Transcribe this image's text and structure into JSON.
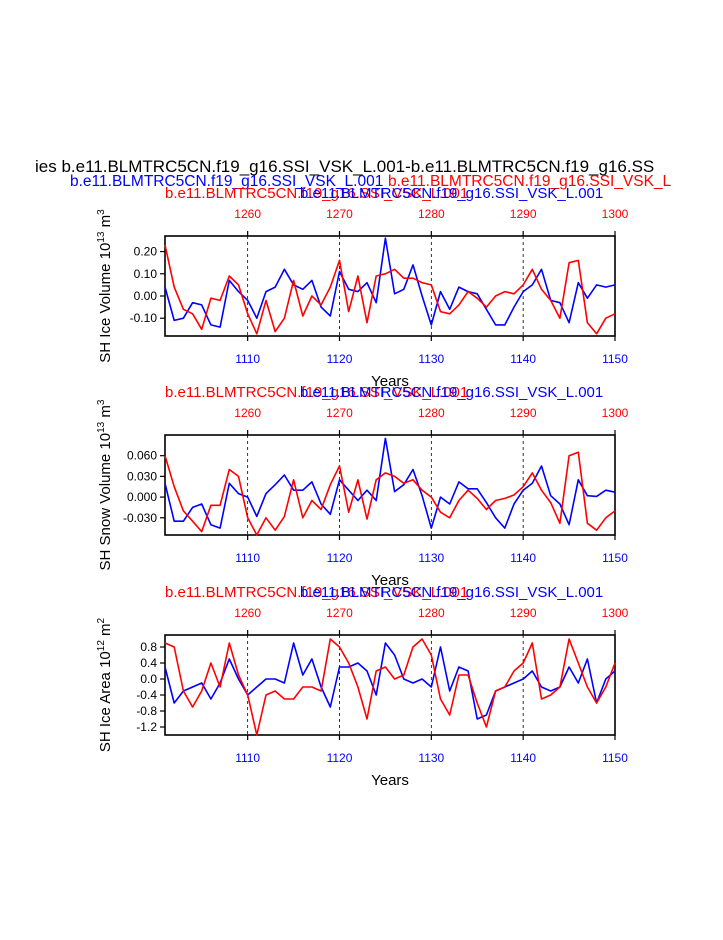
{
  "header": {
    "main_title": "ies b.e11.BLMTRC5CN.f19_g16.SSI_VSK_L.001-b.e11.BLMTRC5CN.f19_g16.SS",
    "run_blue": "b.e11.BLMTRC5CN.f19_g16.SSI_VSK_L.001",
    "run_red": "b.e11.BLMTRC5CN.f19_g16.SSI_VSK_L",
    "colors": {
      "blue": "#0000ff",
      "red": "#ff0000",
      "black": "#000000"
    }
  },
  "chart_data": [
    {
      "type": "line",
      "panel": "ice-volume",
      "ylabel_base": "SH Ice Volume 10",
      "ylabel_exp": "13",
      "ylabel_unit": " m",
      "ylabel_unit_exp": "3",
      "xlabel": "Years",
      "top_left_label": "b.e11.BLMTRC5CN.f19_g16.SSI_VSK_L.001",
      "top_right_label": "b.e11.BLMTRC5CN.f19_g16.SSI_VSK_L.001",
      "ylim": [
        -0.18,
        0.27
      ],
      "yticks": [
        -0.1,
        0.0,
        0.1,
        0.2
      ],
      "ytick_labels": [
        "-0.10",
        "0.00",
        "0.10",
        "0.20"
      ],
      "xlim_bottom": [
        1101,
        1150
      ],
      "xticks_bottom": [
        1110,
        1120,
        1130,
        1140,
        1150
      ],
      "xlim_top": [
        1251,
        1300
      ],
      "xticks_top": [
        1260,
        1270,
        1280,
        1290,
        1300
      ],
      "grid_x": [
        1110,
        1120,
        1130,
        1140
      ],
      "series": [
        {
          "name": "b.e11.BLMTRC5CN.f19_g16.SSI_VSK_L.001",
          "color": "#0000ff",
          "axis": "bottom",
          "x": [
            1101,
            1102,
            1103,
            1104,
            1105,
            1106,
            1107,
            1108,
            1109,
            1110,
            1111,
            1112,
            1113,
            1114,
            1115,
            1116,
            1117,
            1118,
            1119,
            1120,
            1121,
            1122,
            1123,
            1124,
            1125,
            1126,
            1127,
            1128,
            1129,
            1130,
            1131,
            1132,
            1133,
            1134,
            1135,
            1136,
            1137,
            1138,
            1139,
            1140,
            1141,
            1142,
            1143,
            1144,
            1145,
            1146,
            1147,
            1148,
            1149,
            1150
          ],
          "values": [
            0.04,
            -0.11,
            -0.1,
            -0.03,
            -0.04,
            -0.13,
            -0.14,
            0.07,
            0.02,
            -0.02,
            -0.1,
            0.02,
            0.04,
            0.12,
            0.05,
            0.03,
            0.07,
            -0.05,
            -0.09,
            0.11,
            0.03,
            0.02,
            0.06,
            -0.03,
            0.26,
            0.01,
            0.03,
            0.14,
            0.0,
            -0.13,
            0.02,
            -0.06,
            0.04,
            0.02,
            0.01,
            -0.06,
            -0.13,
            -0.13,
            -0.05,
            0.02,
            0.05,
            0.12,
            -0.02,
            -0.03,
            -0.12,
            0.06,
            -0.01,
            0.05,
            0.04,
            0.05
          ]
        },
        {
          "name": "b.e11.BLMTRC5CN.f19_g16.SSI_VSK_L.001",
          "color": "#ff0000",
          "axis": "top",
          "x": [
            1251,
            1252,
            1253,
            1254,
            1255,
            1256,
            1257,
            1258,
            1259,
            1260,
            1261,
            1262,
            1263,
            1264,
            1265,
            1266,
            1267,
            1268,
            1269,
            1270,
            1271,
            1272,
            1273,
            1274,
            1275,
            1276,
            1277,
            1278,
            1279,
            1280,
            1281,
            1282,
            1283,
            1284,
            1285,
            1286,
            1287,
            1288,
            1289,
            1290,
            1291,
            1292,
            1293,
            1294,
            1295,
            1296,
            1297,
            1298,
            1299,
            1300
          ],
          "values": [
            0.23,
            0.04,
            -0.06,
            -0.08,
            -0.15,
            -0.01,
            -0.02,
            0.09,
            0.05,
            -0.08,
            -0.17,
            -0.02,
            -0.16,
            -0.1,
            0.07,
            -0.09,
            0.0,
            -0.04,
            0.04,
            0.16,
            -0.07,
            0.09,
            -0.12,
            0.09,
            0.1,
            0.12,
            0.08,
            0.08,
            0.06,
            0.05,
            -0.07,
            -0.08,
            -0.04,
            0.02,
            -0.01,
            -0.05,
            0.0,
            0.02,
            0.01,
            0.05,
            0.12,
            0.03,
            -0.02,
            -0.1,
            0.15,
            0.16,
            -0.12,
            -0.17,
            -0.1,
            -0.08
          ]
        }
      ]
    },
    {
      "type": "line",
      "panel": "snow-volume",
      "ylabel_base": "SH Snow Volume 10",
      "ylabel_exp": "13",
      "ylabel_unit": " m",
      "ylabel_unit_exp": "3",
      "xlabel": "Years",
      "top_left_label": "b.e11.BLMTRC5CN.f19_g16.SSI_VSK_L.001",
      "top_right_label": "b.e11.BLMTRC5CN.f19_g16.SSI_VSK_L.001",
      "ylim": [
        -0.055,
        0.09
      ],
      "yticks": [
        -0.03,
        0.0,
        0.03,
        0.06
      ],
      "ytick_labels": [
        "-0.030",
        "0.000",
        "0.030",
        "0.060"
      ],
      "xlim_bottom": [
        1101,
        1150
      ],
      "xticks_bottom": [
        1110,
        1120,
        1130,
        1140,
        1150
      ],
      "xlim_top": [
        1251,
        1300
      ],
      "xticks_top": [
        1260,
        1270,
        1280,
        1290,
        1300
      ],
      "grid_x": [
        1110,
        1120,
        1130,
        1140
      ],
      "series": [
        {
          "name": "b.e11.BLMTRC5CN.f19_g16.SSI_VSK_L.001",
          "color": "#0000ff",
          "axis": "bottom",
          "x": [
            1101,
            1102,
            1103,
            1104,
            1105,
            1106,
            1107,
            1108,
            1109,
            1110,
            1111,
            1112,
            1113,
            1114,
            1115,
            1116,
            1117,
            1118,
            1119,
            1120,
            1121,
            1122,
            1123,
            1124,
            1125,
            1126,
            1127,
            1128,
            1129,
            1130,
            1131,
            1132,
            1133,
            1134,
            1135,
            1136,
            1137,
            1138,
            1139,
            1140,
            1141,
            1142,
            1143,
            1144,
            1145,
            1146,
            1147,
            1148,
            1149,
            1150
          ],
          "values": [
            0.02,
            -0.035,
            -0.035,
            -0.015,
            -0.01,
            -0.04,
            -0.045,
            0.02,
            0.005,
            0.0,
            -0.028,
            0.005,
            0.018,
            0.032,
            0.01,
            0.01,
            0.022,
            -0.01,
            -0.025,
            0.025,
            0.01,
            -0.005,
            0.01,
            -0.005,
            0.085,
            0.008,
            0.018,
            0.04,
            0.002,
            -0.045,
            0.0,
            -0.01,
            0.022,
            0.012,
            0.012,
            -0.008,
            -0.03,
            -0.045,
            -0.01,
            0.01,
            0.02,
            0.045,
            0.002,
            -0.01,
            -0.04,
            0.025,
            0.002,
            0.001,
            0.01,
            0.007
          ]
        },
        {
          "name": "b.e11.BLMTRC5CN.f19_g16.SSI_VSK_L.001",
          "color": "#ff0000",
          "axis": "top",
          "x": [
            1251,
            1252,
            1253,
            1254,
            1255,
            1256,
            1257,
            1258,
            1259,
            1260,
            1261,
            1262,
            1263,
            1264,
            1265,
            1266,
            1267,
            1268,
            1269,
            1270,
            1271,
            1272,
            1273,
            1274,
            1275,
            1276,
            1277,
            1278,
            1279,
            1280,
            1281,
            1282,
            1283,
            1284,
            1285,
            1286,
            1287,
            1288,
            1289,
            1290,
            1291,
            1292,
            1293,
            1294,
            1295,
            1296,
            1297,
            1298,
            1299,
            1300
          ],
          "values": [
            0.06,
            0.015,
            -0.02,
            -0.035,
            -0.05,
            -0.012,
            -0.012,
            0.04,
            0.03,
            -0.03,
            -0.055,
            -0.03,
            -0.048,
            -0.028,
            0.025,
            -0.03,
            -0.005,
            -0.018,
            0.018,
            0.045,
            -0.022,
            0.025,
            -0.032,
            0.025,
            0.035,
            0.03,
            0.02,
            0.025,
            0.01,
            0.0,
            -0.022,
            -0.03,
            -0.005,
            0.01,
            -0.002,
            -0.018,
            -0.005,
            -0.002,
            0.003,
            0.015,
            0.035,
            0.01,
            -0.008,
            -0.038,
            0.06,
            0.065,
            -0.038,
            -0.048,
            -0.03,
            -0.02
          ]
        }
      ]
    },
    {
      "type": "line",
      "panel": "ice-area",
      "ylabel_base": "SH Ice Area 10",
      "ylabel_exp": "12",
      "ylabel_unit": " m",
      "ylabel_unit_exp": "2",
      "xlabel": "Years",
      "top_left_label": "b.e11.BLMTRC5CN.f19_g16.SSI_VSK_L.001",
      "top_right_label": "b.e11.BLMTRC5CN.f19_g16.SSI_VSK_L.001",
      "ylim": [
        -1.4,
        1.1
      ],
      "yticks": [
        -1.2,
        -0.8,
        -0.4,
        0.0,
        0.4,
        0.8
      ],
      "ytick_labels": [
        "-1.2",
        "-0.8",
        "-0.4",
        "0.0",
        "0.4",
        "0.8"
      ],
      "xlim_bottom": [
        1101,
        1150
      ],
      "xticks_bottom": [
        1110,
        1120,
        1130,
        1140,
        1150
      ],
      "xlim_top": [
        1251,
        1300
      ],
      "xticks_top": [
        1260,
        1270,
        1280,
        1290,
        1300
      ],
      "grid_x": [
        1110,
        1120,
        1130,
        1140
      ],
      "series": [
        {
          "name": "b.e11.BLMTRC5CN.f19_g16.SSI_VSK_L.001",
          "color": "#0000ff",
          "axis": "bottom",
          "x": [
            1101,
            1102,
            1103,
            1104,
            1105,
            1106,
            1107,
            1108,
            1109,
            1110,
            1111,
            1112,
            1113,
            1114,
            1115,
            1116,
            1117,
            1118,
            1119,
            1120,
            1121,
            1122,
            1123,
            1124,
            1125,
            1126,
            1127,
            1128,
            1129,
            1130,
            1131,
            1132,
            1133,
            1134,
            1135,
            1136,
            1137,
            1138,
            1139,
            1140,
            1141,
            1142,
            1143,
            1144,
            1145,
            1146,
            1147,
            1148,
            1149,
            1150
          ],
          "values": [
            0.3,
            -0.6,
            -0.3,
            -0.2,
            -0.1,
            -0.5,
            -0.1,
            0.5,
            0.0,
            -0.4,
            -0.2,
            0.0,
            0.0,
            -0.1,
            0.9,
            0.1,
            0.5,
            -0.2,
            -0.7,
            0.3,
            0.3,
            0.4,
            0.2,
            -0.4,
            0.9,
            0.6,
            0.0,
            -0.1,
            0.0,
            -0.2,
            0.8,
            -0.3,
            0.3,
            0.2,
            -1.0,
            -0.9,
            -0.3,
            -0.2,
            -0.1,
            0.0,
            0.2,
            -0.2,
            -0.3,
            -0.2,
            0.3,
            -0.1,
            0.5,
            -0.6,
            0.0,
            0.2
          ]
        },
        {
          "name": "b.e11.BLMTRC5CN.f19_g16.SSI_VSK_L.001",
          "color": "#ff0000",
          "axis": "top",
          "x": [
            1251,
            1252,
            1253,
            1254,
            1255,
            1256,
            1257,
            1258,
            1259,
            1260,
            1261,
            1262,
            1263,
            1264,
            1265,
            1266,
            1267,
            1268,
            1269,
            1270,
            1271,
            1272,
            1273,
            1274,
            1275,
            1276,
            1277,
            1278,
            1279,
            1280,
            1281,
            1282,
            1283,
            1284,
            1285,
            1286,
            1287,
            1288,
            1289,
            1290,
            1291,
            1292,
            1293,
            1294,
            1295,
            1296,
            1297,
            1298,
            1299,
            1300
          ],
          "values": [
            0.9,
            0.8,
            -0.3,
            -0.7,
            -0.3,
            0.4,
            -0.2,
            0.9,
            0.1,
            -0.4,
            -1.4,
            -0.4,
            -0.3,
            -0.5,
            -0.5,
            -0.2,
            -0.2,
            -0.3,
            1.0,
            0.8,
            0.4,
            -0.2,
            -1.0,
            0.2,
            0.3,
            0.0,
            0.1,
            0.8,
            1.0,
            0.6,
            -0.5,
            -0.9,
            0.1,
            0.1,
            -0.6,
            -1.2,
            -0.3,
            -0.2,
            0.2,
            0.4,
            0.9,
            -0.5,
            -0.4,
            -0.2,
            1.0,
            0.4,
            -0.2,
            -0.6,
            -0.2,
            0.4
          ]
        }
      ]
    }
  ]
}
